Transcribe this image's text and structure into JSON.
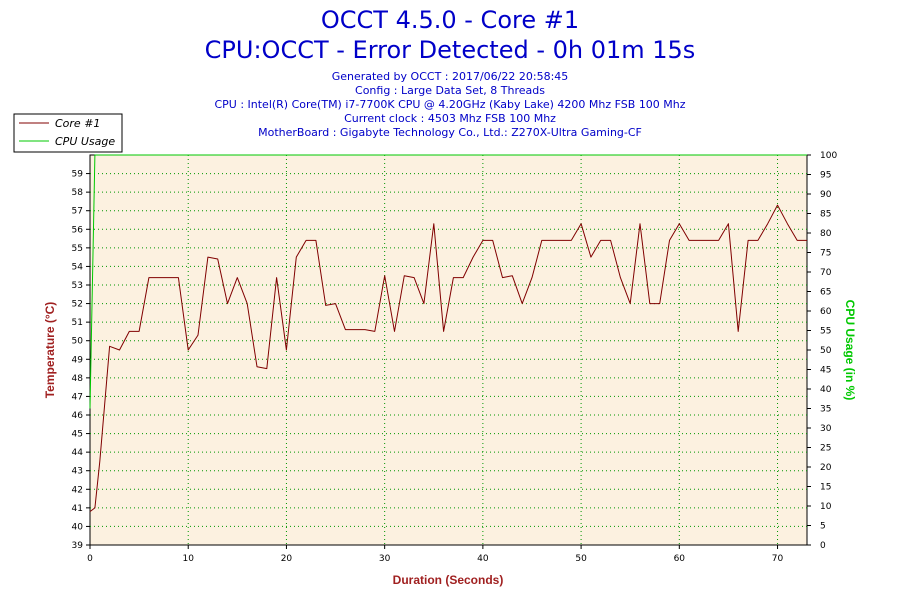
{
  "header": {
    "title_line1": "OCCT 4.5.0 - Core #1",
    "title_line2": "CPU:OCCT - Error Detected - 0h 01m 15s",
    "info": [
      "Generated by OCCT : 2017/06/22 20:58:45",
      "Config : Large Data Set, 8 Threads",
      "CPU : Intel(R) Core(TM) i7-7700K CPU @ 4.20GHz (Kaby Lake) 4200 Mhz FSB 100 Mhz",
      "Current clock : 4503 Mhz FSB 100 Mhz",
      "MotherBoard : Gigabyte Technology Co., Ltd.: Z270X-Ultra Gaming-CF"
    ]
  },
  "colors": {
    "plot_background": "#fcf1e0",
    "grid": "#009600",
    "core_line": "#800000",
    "cpu_usage_line": "#00c800",
    "title_text": "#0000c8",
    "temperature_axis_label": "#a02020",
    "usage_axis_label": "#00c800",
    "duration_axis_label": "#a02020"
  },
  "chart_data": {
    "type": "line",
    "xlabel": "Duration (Seconds)",
    "ylabel_left": "Temperature (°C)",
    "ylabel_right": "CPU Usage (in %)",
    "xlim": [
      0,
      73
    ],
    "x_ticks": [
      0,
      10,
      20,
      30,
      40,
      50,
      60,
      70
    ],
    "ylim_left": [
      39,
      60
    ],
    "y_ticks_left": [
      39,
      40,
      41,
      42,
      43,
      44,
      45,
      46,
      47,
      48,
      49,
      50,
      51,
      52,
      53,
      54,
      55,
      56,
      57,
      58,
      59
    ],
    "y_tick_labels_left": [
      "39",
      "40",
      "41",
      "42",
      "43",
      "44",
      "45",
      "46",
      "47",
      "48",
      "49",
      "50",
      "51",
      "52",
      "53",
      "54",
      "55",
      "56",
      "57",
      "58",
      "59"
    ],
    "ylim_right": [
      0,
      100
    ],
    "y_ticks_right": [
      0,
      5,
      10,
      15,
      20,
      25,
      30,
      35,
      40,
      45,
      50,
      55,
      60,
      65,
      70,
      75,
      80,
      85,
      90,
      95,
      100
    ],
    "grid": true,
    "legend_position": "top-left",
    "series": [
      {
        "name": "Core #1",
        "axis": "left",
        "x": [
          0,
          0.5,
          1,
          2,
          3,
          4,
          5,
          6,
          7,
          8,
          9,
          10,
          11,
          12,
          13,
          14,
          15,
          16,
          17,
          18,
          19,
          20,
          21,
          22,
          23,
          24,
          25,
          26,
          27,
          28,
          29,
          30,
          31,
          32,
          33,
          34,
          35,
          36,
          37,
          38,
          39,
          40,
          41,
          42,
          43,
          44,
          45,
          46,
          47,
          48,
          49,
          50,
          51,
          52,
          53,
          54,
          55,
          56,
          57,
          58,
          59,
          60,
          61,
          62,
          63,
          64,
          65,
          66,
          67,
          68,
          69,
          70,
          71,
          72,
          73
        ],
        "y": [
          40.8,
          41.0,
          43.5,
          49.7,
          49.5,
          50.5,
          50.5,
          53.4,
          53.4,
          53.4,
          53.4,
          49.5,
          50.3,
          54.5,
          54.4,
          52.0,
          53.4,
          52.0,
          48.6,
          48.5,
          53.4,
          49.5,
          54.5,
          55.4,
          55.4,
          51.9,
          52.0,
          50.6,
          50.6,
          50.6,
          50.5,
          53.5,
          50.5,
          53.5,
          53.4,
          52.0,
          56.3,
          50.5,
          53.4,
          53.4,
          54.5,
          55.4,
          55.4,
          53.4,
          53.5,
          52.0,
          53.4,
          55.4,
          55.4,
          55.4,
          55.4,
          56.3,
          54.5,
          55.4,
          55.4,
          53.4,
          52.0,
          56.3,
          52.0,
          52.0,
          55.4,
          56.3,
          55.4,
          55.4,
          55.4,
          55.4,
          56.3,
          50.5,
          55.4,
          55.4,
          56.3,
          57.3,
          56.3,
          55.4,
          55.4
        ]
      },
      {
        "name": "CPU Usage",
        "axis": "right",
        "x": [
          0,
          0.5,
          0.6,
          73
        ],
        "y": [
          35,
          100,
          100,
          100
        ]
      }
    ]
  }
}
